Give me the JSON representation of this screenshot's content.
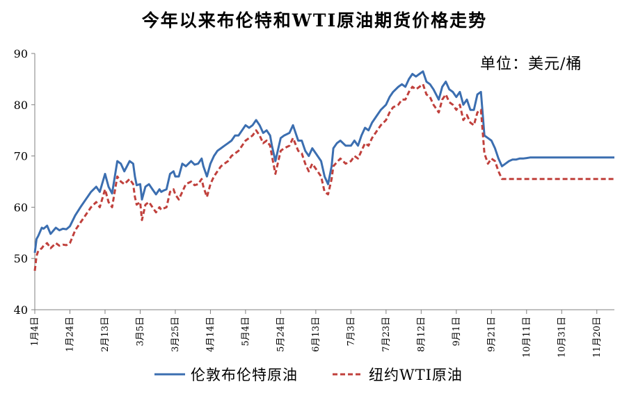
{
  "chart_data": {
    "type": "line",
    "title": "今年以来布伦特和WTI原油期货价格走势",
    "unit": "单位：美元/桶",
    "ylim": [
      40,
      90
    ],
    "yticks": [
      40,
      50,
      60,
      70,
      80,
      90
    ],
    "xticks": [
      "1月4日",
      "1月24日",
      "2月13日",
      "3月5日",
      "3月25日",
      "4月14日",
      "5月4日",
      "5月24日",
      "6月13日",
      "7月3日",
      "7月23日",
      "8月12日",
      "9月1日",
      "9月21日",
      "10月11日",
      "10月31日",
      "11月20日"
    ],
    "legend_position": "bottom",
    "grid": false,
    "series": [
      {
        "name": "伦敦布伦特原油",
        "color": "#3b6eb0",
        "line_style": "solid",
        "x_days": [
          0,
          1,
          2,
          4,
          5,
          7,
          9,
          12,
          14,
          16,
          18,
          20,
          23,
          26,
          29,
          32,
          35,
          37,
          40,
          42,
          44,
          47,
          49,
          51,
          54,
          56,
          57,
          58,
          60,
          61,
          63,
          65,
          67,
          69,
          71,
          72,
          73,
          75,
          77,
          79,
          80,
          82,
          84,
          86,
          89,
          91,
          93,
          95,
          96,
          98,
          100,
          102,
          104,
          106,
          108,
          110,
          112,
          114,
          116,
          118,
          120,
          122,
          124,
          126,
          128,
          130,
          132,
          134,
          135,
          137,
          140,
          142,
          145,
          147,
          150,
          152,
          154,
          156,
          158,
          160,
          163,
          165,
          167,
          169,
          170,
          172,
          174,
          177,
          180,
          182,
          184,
          186,
          188,
          190,
          192,
          195,
          197,
          200,
          202,
          204,
          207,
          209,
          211,
          213,
          215,
          217,
          219,
          221,
          223,
          225,
          227,
          230,
          232,
          234,
          236,
          238,
          240,
          242,
          244,
          246,
          248,
          250,
          252,
          254,
          256,
          258,
          260,
          262,
          264,
          266,
          268,
          270,
          272,
          274,
          276,
          278,
          280,
          282,
          284,
          286,
          288,
          290,
          292,
          294,
          296,
          298,
          300,
          302,
          304,
          306,
          308,
          310,
          312,
          314,
          316,
          318,
          320,
          322,
          324,
          326,
          327,
          328,
          329,
          330
        ],
        "values": [
          51.1,
          53.8,
          54.4,
          56.0,
          55.8,
          56.4,
          54.8,
          56.0,
          55.5,
          55.8,
          55.7,
          56.3,
          58.4,
          60.0,
          61.5,
          63.0,
          64.0,
          63.0,
          66.5,
          64.0,
          62.7,
          69.0,
          68.5,
          67.0,
          69.0,
          68.5,
          66.0,
          64.3,
          64.5,
          61.5,
          64.0,
          64.5,
          63.5,
          62.5,
          63.5,
          63.0,
          63.2,
          63.5,
          66.5,
          67.0,
          66.0,
          66.0,
          68.5,
          68.0,
          69.0,
          68.3,
          68.5,
          69.5,
          68.0,
          66.0,
          68.5,
          70.0,
          71.0,
          71.5,
          72.0,
          72.5,
          73.0,
          74.0,
          74.0,
          75.0,
          76.0,
          75.5,
          76.0,
          77.0,
          76.0,
          74.5,
          75.0,
          74.0,
          72.0,
          69.0,
          73.5,
          74.0,
          74.5,
          76.0,
          73.0,
          73.0,
          71.0,
          70.0,
          71.5,
          70.5,
          69.0,
          66.0,
          64.5,
          68.0,
          71.5,
          72.5,
          73.0,
          72.0,
          72.0,
          73.0,
          72.0,
          74.0,
          75.5,
          75.0,
          76.5,
          78.0,
          79.0,
          80.0,
          81.5,
          82.5,
          83.5,
          84.0,
          83.5,
          85.0,
          86.0,
          85.5,
          86.0,
          86.5,
          84.5,
          84.0,
          83.0,
          81.0,
          83.5,
          84.5,
          83.0,
          82.5,
          81.5,
          82.5,
          80.0,
          81.0,
          79.0,
          79.0,
          82.0,
          82.5,
          74.0,
          73.5,
          73.0,
          71.5,
          69.5,
          68.0,
          68.5,
          69.0,
          69.3,
          69.3,
          69.5,
          69.5,
          69.6,
          69.7,
          69.7,
          69.7,
          69.7,
          69.7,
          69.7,
          69.7,
          69.7,
          69.7,
          69.7,
          69.7,
          69.7,
          69.7,
          69.7,
          69.7,
          69.7,
          69.7,
          69.7,
          69.7,
          69.7,
          69.7,
          69.7,
          69.7,
          69.7,
          69.7,
          69.7,
          69.7
        ]
      },
      {
        "name": "纽约WTI原油",
        "color": "#c0403c",
        "line_style": "dashed",
        "x_days": [
          0,
          1,
          2,
          4,
          5,
          7,
          9,
          12,
          14,
          16,
          18,
          20,
          23,
          26,
          29,
          32,
          35,
          37,
          40,
          42,
          44,
          47,
          49,
          51,
          54,
          56,
          57,
          58,
          60,
          61,
          63,
          65,
          67,
          69,
          71,
          72,
          73,
          75,
          77,
          79,
          80,
          82,
          84,
          86,
          89,
          91,
          93,
          95,
          96,
          98,
          100,
          102,
          104,
          106,
          108,
          110,
          112,
          114,
          116,
          118,
          120,
          122,
          124,
          126,
          128,
          130,
          132,
          134,
          135,
          137,
          140,
          142,
          145,
          147,
          150,
          152,
          154,
          156,
          158,
          160,
          163,
          165,
          167,
          169,
          170,
          172,
          174,
          177,
          180,
          182,
          184,
          186,
          188,
          190,
          192,
          195,
          197,
          200,
          202,
          204,
          207,
          209,
          211,
          213,
          215,
          217,
          219,
          221,
          223,
          225,
          227,
          230,
          232,
          234,
          236,
          238,
          240,
          242,
          244,
          246,
          248,
          250,
          252,
          254,
          256,
          258,
          260,
          262,
          264,
          266,
          268,
          270,
          272,
          274,
          276,
          278,
          280,
          282,
          284,
          286,
          288,
          290,
          292,
          294,
          296,
          298,
          300,
          302,
          304,
          306,
          308,
          310,
          312,
          314,
          316,
          318,
          320,
          322,
          324,
          326,
          327,
          328,
          329,
          330
        ],
        "values": [
          47.6,
          50.5,
          51.5,
          52.0,
          52.5,
          53.0,
          52.0,
          53.0,
          52.5,
          52.7,
          52.6,
          53.0,
          55.5,
          57.0,
          58.5,
          60.0,
          61.0,
          60.0,
          63.5,
          61.0,
          60.0,
          66.0,
          65.0,
          64.5,
          65.5,
          64.5,
          62.0,
          60.5,
          61.0,
          57.5,
          60.5,
          61.0,
          60.0,
          59.0,
          60.0,
          59.5,
          59.7,
          60.0,
          63.0,
          63.5,
          62.5,
          61.5,
          63.0,
          64.5,
          65.0,
          64.3,
          64.5,
          65.5,
          64.0,
          62.0,
          64.5,
          66.0,
          67.0,
          68.0,
          68.5,
          69.0,
          70.0,
          70.5,
          71.0,
          72.0,
          73.0,
          73.5,
          74.0,
          75.0,
          74.0,
          72.5,
          73.0,
          72.0,
          70.0,
          66.5,
          71.0,
          71.5,
          72.0,
          73.5,
          71.0,
          70.5,
          68.5,
          67.0,
          68.5,
          67.5,
          66.0,
          63.0,
          62.5,
          65.5,
          68.0,
          68.8,
          69.5,
          68.5,
          69.0,
          70.0,
          69.5,
          71.0,
          72.5,
          72.0,
          73.5,
          75.0,
          76.0,
          77.0,
          78.5,
          79.5,
          80.0,
          81.0,
          81.0,
          82.5,
          83.5,
          83.0,
          83.5,
          84.0,
          82.0,
          81.5,
          80.0,
          78.5,
          81.0,
          82.0,
          80.5,
          80.0,
          79.0,
          80.0,
          77.0,
          78.0,
          76.5,
          76.0,
          78.5,
          79.0,
          70.5,
          68.5,
          69.5,
          69.0,
          67.0,
          65.5,
          65.5,
          65.5,
          65.5,
          65.5,
          65.5,
          65.5,
          65.5,
          65.5,
          65.5,
          65.5,
          65.5,
          65.5,
          65.5,
          65.5,
          65.5,
          65.5,
          65.5,
          65.5,
          65.5,
          65.5,
          65.5,
          65.5,
          65.5,
          65.5,
          65.5,
          65.5,
          65.5,
          65.5,
          65.5,
          65.5,
          65.5,
          65.5,
          65.5,
          65.5
        ]
      }
    ]
  }
}
